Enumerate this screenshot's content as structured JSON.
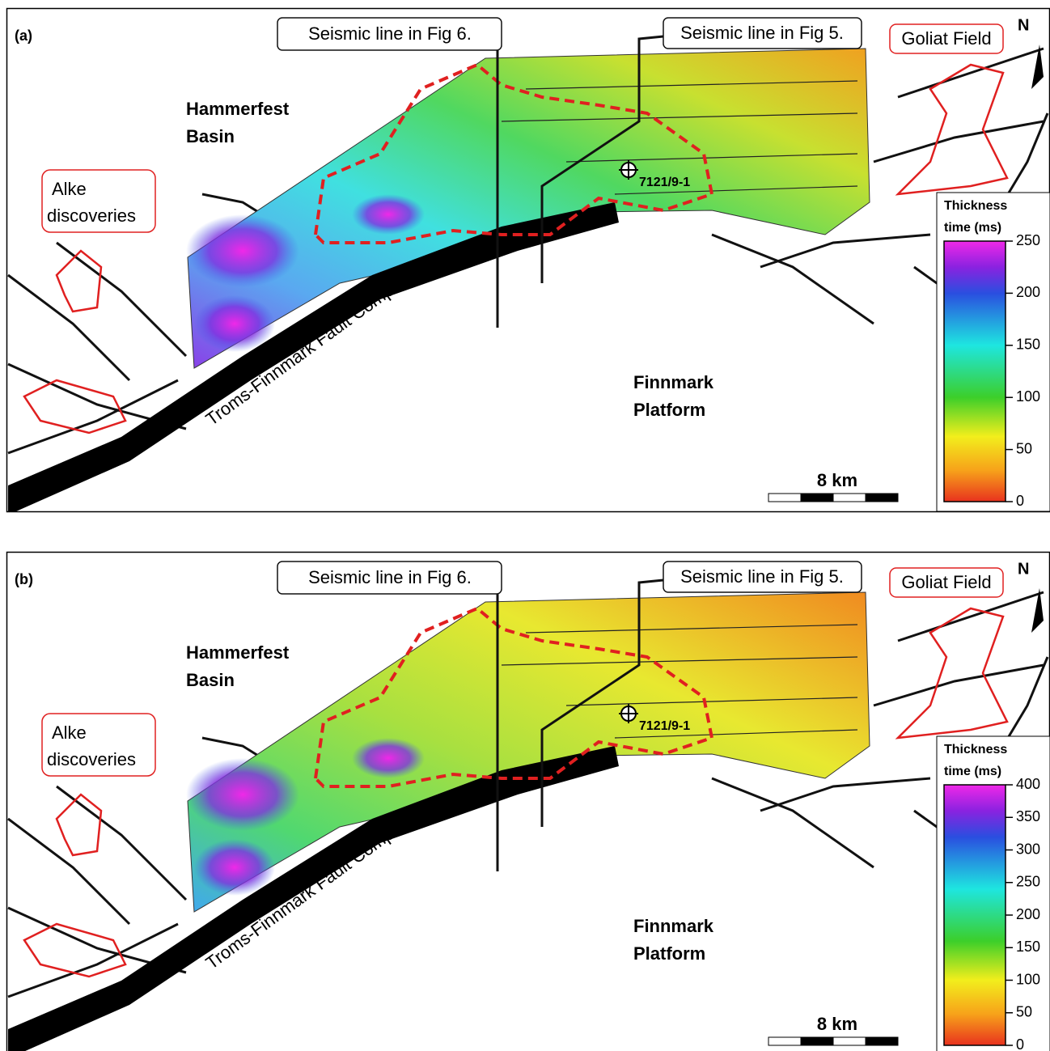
{
  "panels": [
    {
      "label": "(a)",
      "seismic_line_fig6": "Seismic line in Fig 6.",
      "seismic_line_fig5": "Seismic line in Fig 5.",
      "goliat": "Goliat Field",
      "north": "N",
      "hammerfest": [
        "Hammerfest",
        "Basin"
      ],
      "alke": [
        "Alke",
        "discoveries"
      ],
      "well": "7121/9-1",
      "fault_complex": "Troms-Finnmark Fault Complex",
      "finnmark": [
        "Finnmark",
        "Platform"
      ],
      "scale": "8 km",
      "colorbar": {
        "title": [
          "Thickness",
          "time (ms)"
        ],
        "range": [
          0,
          250
        ],
        "ticks": [
          0,
          50,
          100,
          150,
          200,
          250
        ]
      }
    },
    {
      "label": "(b)",
      "seismic_line_fig6": "Seismic line in Fig 6.",
      "seismic_line_fig5": "Seismic line in Fig 5.",
      "goliat": "Goliat Field",
      "north": "N",
      "hammerfest": [
        "Hammerfest",
        "Basin"
      ],
      "alke": [
        "Alke",
        "discoveries"
      ],
      "well": "7121/9-1",
      "fault_complex": "Troms-Finnmark Fault Complex",
      "finnmark": [
        "Finnmark",
        "Platform"
      ],
      "scale": "8 km",
      "colorbar": {
        "title": [
          "Thickness",
          "time (ms)"
        ],
        "range": [
          0,
          400
        ],
        "ticks": [
          0,
          50,
          100,
          150,
          200,
          250,
          300,
          350,
          400
        ]
      }
    }
  ]
}
